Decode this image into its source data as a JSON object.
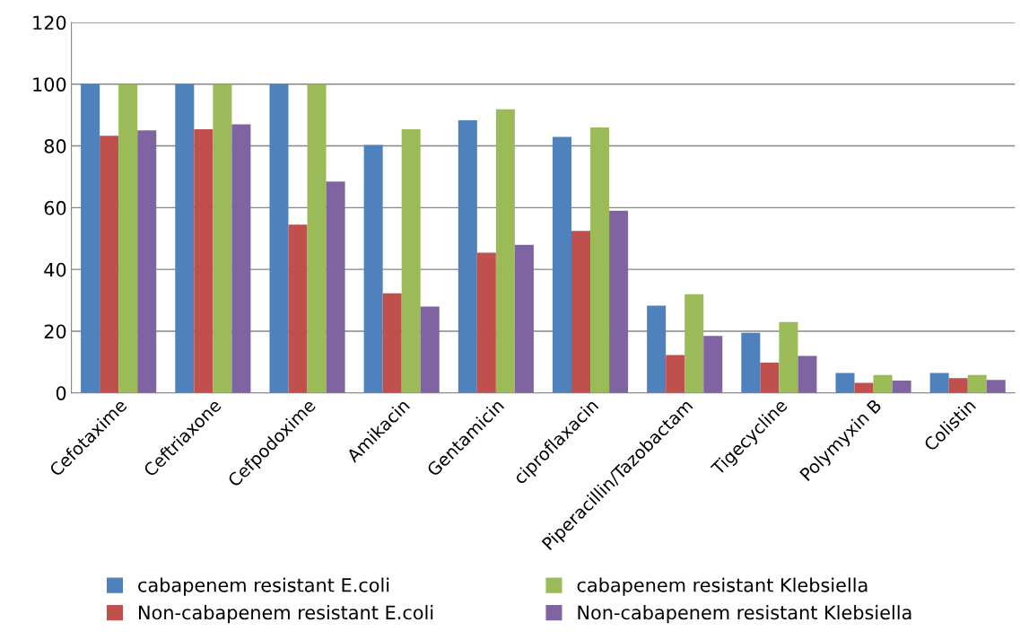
{
  "chart_data": {
    "type": "bar",
    "categories": [
      "Cefotaxime",
      "Ceftriaxone",
      "Cefpodoxime",
      "Amikacin",
      "Gentamicin",
      "ciproflaxacin",
      "Piperacillin/Tazobactam",
      "Tigecycline",
      "Polymyxin B",
      "Colistin"
    ],
    "series": [
      {
        "name": "cabapenem resistant E.coli",
        "color": "#4f81bd",
        "values": [
          100,
          100,
          100,
          80.3,
          88.3,
          82.9,
          28.3,
          19.5,
          6.5,
          6.5
        ]
      },
      {
        "name": "Non-cabapenem resistant E.coli",
        "color": "#c0504d",
        "values": [
          83.3,
          85.4,
          54.5,
          32.3,
          45.4,
          52.5,
          12.3,
          9.8,
          3.3,
          4.8
        ]
      },
      {
        "name": "cabapenem resistant Klebsiella",
        "color": "#9bbb59",
        "values": [
          100,
          100,
          100,
          85.4,
          91.9,
          86,
          32,
          23,
          5.8,
          5.8
        ]
      },
      {
        "name": "Non-cabapenem resistant Klebsiella",
        "color": "#8064a2",
        "values": [
          85,
          87,
          68.5,
          28,
          48,
          59,
          18.5,
          12,
          4,
          4.2
        ]
      }
    ],
    "ylim": [
      0,
      120
    ],
    "yticks": [
      0,
      20,
      40,
      60,
      80,
      100,
      120
    ],
    "grid": "y",
    "legend": "bottom"
  }
}
